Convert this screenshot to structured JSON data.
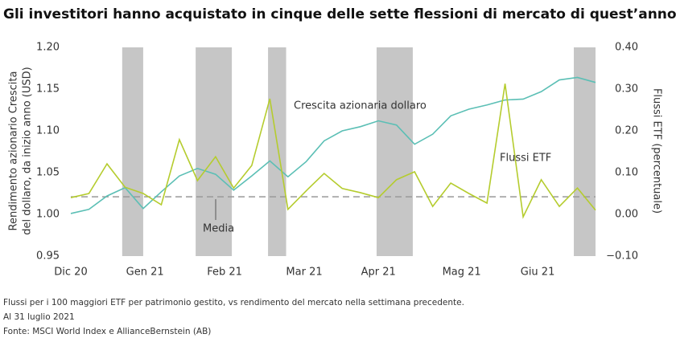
{
  "chart_data": {
    "type": "line",
    "title": "Gli investitori hanno acquistato in cinque delle sette flessioni di mercato di quest’anno",
    "ylabel": [
      "Rendimento azionario Crescita",
      "del dollaro, da inizio anno (USD)"
    ],
    "y2label": "Flussi ETF (percentuale)",
    "x": [
      0,
      1,
      2,
      3,
      4,
      5,
      6,
      7,
      8,
      9,
      10,
      11,
      12,
      13,
      14,
      15,
      16,
      17,
      18,
      19,
      20,
      21,
      22,
      23,
      24,
      25,
      26,
      27,
      28,
      29
    ],
    "xlim": [
      0,
      29
    ],
    "xticks": [
      {
        "value": 0,
        "label": "Dic 20"
      },
      {
        "value": 4.1,
        "label": "Gen 21"
      },
      {
        "value": 8.5,
        "label": "Feb 21"
      },
      {
        "value": 12.9,
        "label": "Mar 21"
      },
      {
        "value": 17.0,
        "label": "Apr 21"
      },
      {
        "value": 21.6,
        "label": "Mag 21"
      },
      {
        "value": 25.8,
        "label": "Giu 21"
      }
    ],
    "ylim": [
      0.95,
      1.2
    ],
    "yticks": [
      {
        "value": 0.95,
        "label": "0.95"
      },
      {
        "value": 1.0,
        "label": "1.00"
      },
      {
        "value": 1.05,
        "label": "1.05"
      },
      {
        "value": 1.1,
        "label": "1.10"
      },
      {
        "value": 1.15,
        "label": "1.15"
      },
      {
        "value": 1.2,
        "label": "1.20"
      }
    ],
    "y2lim": [
      -0.1,
      0.4
    ],
    "y2ticks": [
      {
        "value": -0.1,
        "label": "−0.10"
      },
      {
        "value": 0,
        "label": "0.00"
      },
      {
        "value": 0.1,
        "label": "0.10"
      },
      {
        "value": 0.2,
        "label": "0.20"
      },
      {
        "value": 0.3,
        "label": "0.30"
      },
      {
        "value": 0.4,
        "label": "0.40"
      }
    ],
    "shaded_ranges": [
      [
        2.84,
        4.0
      ],
      [
        6.9,
        8.9
      ],
      [
        10.9,
        11.9
      ],
      [
        16.9,
        18.9
      ],
      [
        27.8,
        29
      ]
    ],
    "mean": {
      "label": "Media",
      "value": 1.021
    },
    "series": [
      {
        "name": "Crescita azionaria dollaro",
        "color": "#5bbfb5",
        "values": [
          1.001,
          1.006,
          1.022,
          1.032,
          1.007,
          1.027,
          1.046,
          1.055,
          1.048,
          1.029,
          1.046,
          1.064,
          1.045,
          1.063,
          1.088,
          1.1,
          1.105,
          1.112,
          1.107,
          1.084,
          1.096,
          1.118,
          1.126,
          1.131,
          1.137,
          1.138,
          1.147,
          1.161,
          1.164,
          1.158
        ]
      },
      {
        "name": "Flussi ETF",
        "color": "#b5cc2e",
        "axis": "y2",
        "values": [
          0.04,
          0.05,
          0.121,
          0.065,
          0.05,
          0.023,
          0.179,
          0.081,
          0.138,
          0.063,
          0.117,
          0.277,
          0.012,
          0.056,
          0.098,
          0.062,
          0.052,
          0.04,
          0.083,
          0.102,
          0.019,
          0.075,
          0.05,
          0.027,
          0.313,
          -0.006,
          0.083,
          0.019,
          0.063,
          0.01
        ]
      }
    ],
    "notes": [
      "Flussi per i 100 maggiori ETF per patrimonio gestito, vs rendimento del mercato nella settimana precedente.",
      "Al 31 luglio 2021",
      "Fonte: MSCI World Index e AllianceBernstein (AB)"
    ]
  }
}
